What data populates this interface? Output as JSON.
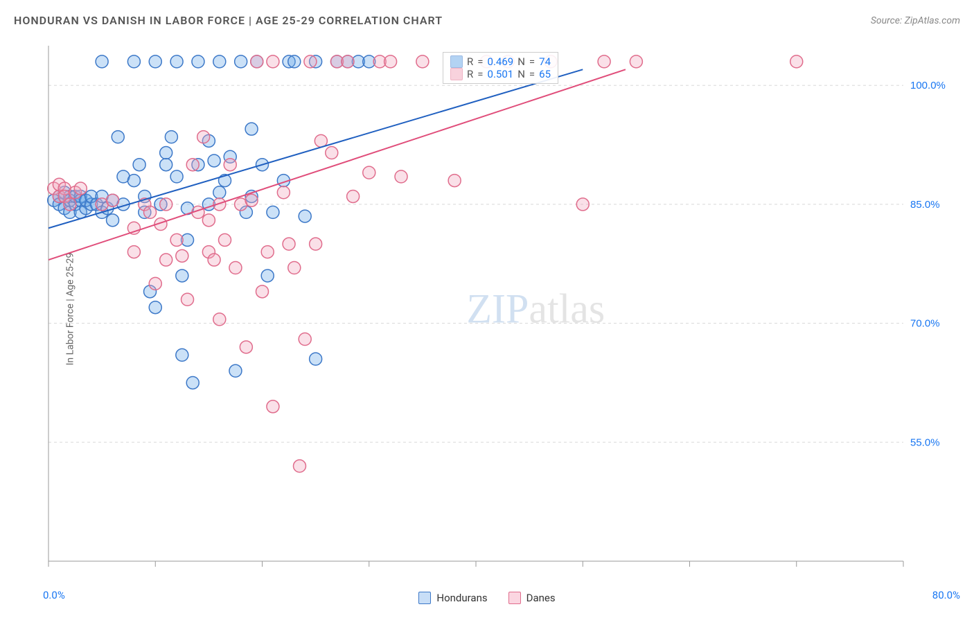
{
  "header": {
    "title": "HONDURAN VS DANISH IN LABOR FORCE | AGE 25-29 CORRELATION CHART",
    "source": "Source: ZipAtlas.com"
  },
  "yaxis_label": "In Labor Force | Age 25-29",
  "watermark": {
    "zip": "ZIP",
    "atlas": "atlas"
  },
  "chart": {
    "type": "scatter",
    "background_color": "#ffffff",
    "grid_color": "#d8d8d8",
    "grid_dash": "4,4",
    "axis_color": "#999999",
    "tick_color": "#999999",
    "marker_radius": 9,
    "marker_fill_opacity": 0.35,
    "marker_stroke_width": 1.5,
    "line_width": 2,
    "xlim": [
      0,
      80
    ],
    "ylim": [
      40,
      105
    ],
    "x_ticks": [
      0,
      10,
      20,
      30,
      40,
      50,
      60,
      70,
      80
    ],
    "y_ticks": [
      55,
      70,
      85,
      100
    ],
    "y_tick_labels": [
      "55.0%",
      "70.0%",
      "85.0%",
      "100.0%"
    ],
    "x_min_label": "0.0%",
    "x_max_label": "80.0%",
    "y_label_color": "#1876f2",
    "y_label_fontsize": 15,
    "series": [
      {
        "name": "Hondurans",
        "color": "#6aa8e8",
        "stroke_color": "#3c78c8",
        "line_color": "#1f5fc0",
        "R": "0.469",
        "N": "74",
        "trend": {
          "x1": 0,
          "y1": 82,
          "x2": 50,
          "y2": 102
        },
        "points": [
          [
            0.5,
            85.5
          ],
          [
            1,
            86
          ],
          [
            1,
            85
          ],
          [
            1.5,
            84.5
          ],
          [
            1.5,
            86.5
          ],
          [
            2,
            86
          ],
          [
            2,
            84
          ],
          [
            2,
            85.5
          ],
          [
            2.5,
            85
          ],
          [
            2.5,
            86
          ],
          [
            3,
            84
          ],
          [
            3,
            86
          ],
          [
            3,
            85.5
          ],
          [
            3.5,
            84.5
          ],
          [
            3.5,
            85.5
          ],
          [
            4,
            85
          ],
          [
            4,
            86
          ],
          [
            4.5,
            85
          ],
          [
            5,
            86
          ],
          [
            5,
            84
          ],
          [
            5,
            103
          ],
          [
            5.5,
            84.5
          ],
          [
            6,
            85.5
          ],
          [
            6,
            83
          ],
          [
            6.5,
            93.5
          ],
          [
            7,
            85
          ],
          [
            7,
            88.5
          ],
          [
            8,
            103
          ],
          [
            8,
            88
          ],
          [
            8.5,
            90
          ],
          [
            9,
            84
          ],
          [
            9,
            86
          ],
          [
            9.5,
            74
          ],
          [
            10,
            103
          ],
          [
            10,
            72
          ],
          [
            10.5,
            85
          ],
          [
            11,
            91.5
          ],
          [
            11,
            90
          ],
          [
            11.5,
            93.5
          ],
          [
            12,
            88.5
          ],
          [
            12,
            103
          ],
          [
            12.5,
            66
          ],
          [
            12.5,
            76
          ],
          [
            13,
            84.5
          ],
          [
            13,
            80.5
          ],
          [
            13.5,
            62.5
          ],
          [
            14,
            90
          ],
          [
            14,
            103
          ],
          [
            15,
            85
          ],
          [
            15,
            93
          ],
          [
            15.5,
            90.5
          ],
          [
            16,
            103
          ],
          [
            16,
            86.5
          ],
          [
            16.5,
            88
          ],
          [
            17,
            91
          ],
          [
            17.5,
            64
          ],
          [
            18,
            103
          ],
          [
            18.5,
            84
          ],
          [
            19,
            94.5
          ],
          [
            19,
            86
          ],
          [
            19.5,
            103
          ],
          [
            20,
            90
          ],
          [
            20.5,
            76
          ],
          [
            21,
            84
          ],
          [
            22,
            88
          ],
          [
            22.5,
            103
          ],
          [
            23,
            103
          ],
          [
            24,
            83.5
          ],
          [
            25,
            103
          ],
          [
            25,
            65.5
          ],
          [
            27,
            103
          ],
          [
            28,
            103
          ],
          [
            29,
            103
          ],
          [
            30,
            103
          ]
        ]
      },
      {
        "name": "Danes",
        "color": "#f2a7bd",
        "stroke_color": "#e06c8c",
        "line_color": "#e04d7a",
        "R": "0.501",
        "N": "65",
        "trend": {
          "x1": 0,
          "y1": 78,
          "x2": 54,
          "y2": 102
        },
        "points": [
          [
            0.5,
            87
          ],
          [
            1,
            86
          ],
          [
            1,
            87.5
          ],
          [
            1.5,
            87
          ],
          [
            1.5,
            86
          ],
          [
            2,
            85
          ],
          [
            2.5,
            86.5
          ],
          [
            3,
            87
          ],
          [
            5,
            85
          ],
          [
            6,
            85.5
          ],
          [
            8,
            82
          ],
          [
            8,
            79
          ],
          [
            9,
            85
          ],
          [
            9.5,
            84
          ],
          [
            10,
            75
          ],
          [
            10.5,
            82.5
          ],
          [
            11,
            78
          ],
          [
            11,
            85
          ],
          [
            12,
            80.5
          ],
          [
            12.5,
            78.5
          ],
          [
            13,
            73
          ],
          [
            13.5,
            90
          ],
          [
            14,
            84
          ],
          [
            14.5,
            93.5
          ],
          [
            15,
            79
          ],
          [
            15,
            83
          ],
          [
            15.5,
            78
          ],
          [
            16,
            70.5
          ],
          [
            16,
            85
          ],
          [
            16.5,
            80.5
          ],
          [
            17,
            90
          ],
          [
            17.5,
            77
          ],
          [
            18,
            85
          ],
          [
            18.5,
            67
          ],
          [
            19,
            85.5
          ],
          [
            19.5,
            103
          ],
          [
            20,
            74
          ],
          [
            20.5,
            79
          ],
          [
            21,
            59.5
          ],
          [
            21,
            103
          ],
          [
            22,
            86.5
          ],
          [
            22.5,
            80
          ],
          [
            23,
            77
          ],
          [
            23.5,
            52
          ],
          [
            24,
            68
          ],
          [
            24.5,
            103
          ],
          [
            25,
            80
          ],
          [
            25.5,
            93
          ],
          [
            26.5,
            91.5
          ],
          [
            27,
            103
          ],
          [
            28,
            103
          ],
          [
            28.5,
            86
          ],
          [
            30,
            89
          ],
          [
            31,
            103
          ],
          [
            32,
            103
          ],
          [
            33,
            88.5
          ],
          [
            35,
            103
          ],
          [
            38,
            88
          ],
          [
            41,
            103
          ],
          [
            43,
            103
          ],
          [
            47,
            103
          ],
          [
            50,
            85
          ],
          [
            52,
            103
          ],
          [
            55,
            103
          ],
          [
            70,
            103
          ]
        ]
      }
    ],
    "rn_box": {
      "top_pct": 2,
      "left_pct": 44
    },
    "legend_swatch_border": "1px solid"
  },
  "bottom_legend": [
    {
      "label": "Hondurans",
      "fill": "#c8def7",
      "stroke": "#3c78c8"
    },
    {
      "label": "Danes",
      "fill": "#fbd6e1",
      "stroke": "#e06c8c"
    }
  ]
}
